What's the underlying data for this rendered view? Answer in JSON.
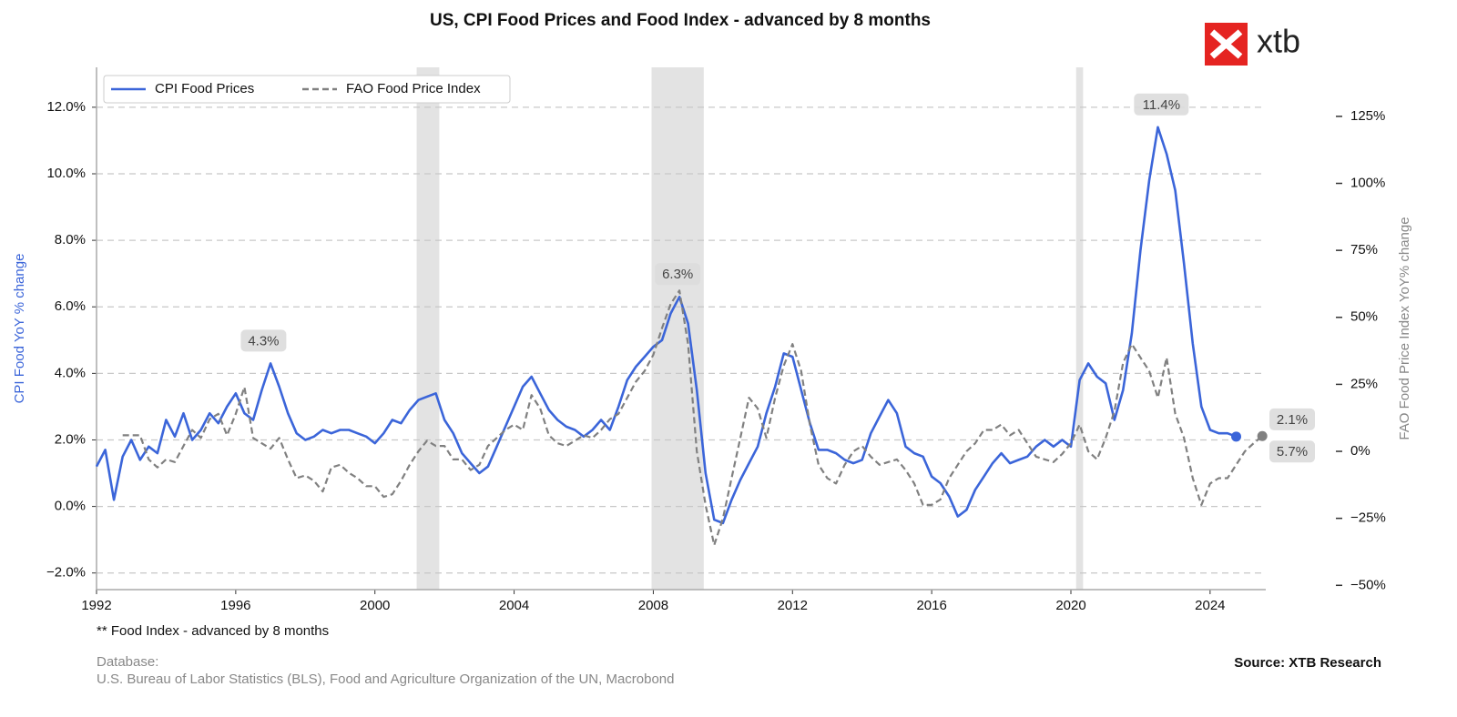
{
  "chart_data": {
    "type": "line",
    "title": "US, CPI Food Prices and Food Index - advanced by 8 months",
    "logo": "xtb",
    "y_label": "CPI Food YoY % change",
    "y2_label": "FAO Food Price Index YoY% change",
    "footnote": "** Food Index - advanced by 8 months",
    "database_title": "Database:",
    "database": "U.S. Bureau of Labor Statistics (BLS), Food and Agriculture Organization of the UN, Macrobond",
    "source": "Source: XTB Research",
    "xlim": [
      1992,
      2025.6
    ],
    "xticks": [
      1992,
      1996,
      2000,
      2004,
      2008,
      2012,
      2016,
      2020,
      2024
    ],
    "ylim": [
      -2.5,
      13.2
    ],
    "yticks": [
      {
        "value": -2,
        "label": "−2.0%"
      },
      {
        "value": 0,
        "label": "0.0%"
      },
      {
        "value": 2,
        "label": "2.0%"
      },
      {
        "value": 4,
        "label": "4.0%"
      },
      {
        "value": 6,
        "label": "6.0%"
      },
      {
        "value": 8,
        "label": "8.0%"
      },
      {
        "value": 10,
        "label": "10.0%"
      },
      {
        "value": 12,
        "label": "12.0%"
      }
    ],
    "y2lim": [
      -51.6,
      143.3
    ],
    "y2ticks": [
      {
        "value": -50,
        "label": "−50%"
      },
      {
        "value": -25,
        "label": "−25%"
      },
      {
        "value": 0,
        "label": "0%"
      },
      {
        "value": 25,
        "label": "25%"
      },
      {
        "value": 50,
        "label": "50%"
      },
      {
        "value": 75,
        "label": "75%"
      },
      {
        "value": 100,
        "label": "100%"
      },
      {
        "value": 125,
        "label": "125%"
      }
    ],
    "grid": true,
    "legend": "upper left",
    "shaded_periods": [
      [
        2001.2,
        2001.85
      ],
      [
        2007.95,
        2009.45
      ],
      [
        2020.15,
        2020.35
      ]
    ],
    "series": [
      {
        "name": "CPI Food Prices",
        "color": "#3b65d9",
        "axis": "y",
        "x": [
          1992,
          1992.25,
          1992.5,
          1992.75,
          1993,
          1993.25,
          1993.5,
          1993.75,
          1994,
          1994.25,
          1994.5,
          1994.75,
          1995,
          1995.25,
          1995.5,
          1995.75,
          1996,
          1996.25,
          1996.5,
          1996.75,
          1997,
          1997.25,
          1997.5,
          1997.75,
          1998,
          1998.25,
          1998.5,
          1998.75,
          1999,
          1999.25,
          1999.5,
          1999.75,
          2000,
          2000.25,
          2000.5,
          2000.75,
          2001,
          2001.25,
          2001.5,
          2001.75,
          2002,
          2002.25,
          2002.5,
          2002.75,
          2003,
          2003.25,
          2003.5,
          2003.75,
          2004,
          2004.25,
          2004.5,
          2004.75,
          2005,
          2005.25,
          2005.5,
          2005.75,
          2006,
          2006.25,
          2006.5,
          2006.75,
          2007,
          2007.25,
          2007.5,
          2007.75,
          2008,
          2008.25,
          2008.5,
          2008.75,
          2009,
          2009.25,
          2009.5,
          2009.75,
          2010,
          2010.25,
          2010.5,
          2010.75,
          2011,
          2011.25,
          2011.5,
          2011.75,
          2012,
          2012.25,
          2012.5,
          2012.75,
          2013,
          2013.25,
          2013.5,
          2013.75,
          2014,
          2014.25,
          2014.5,
          2014.75,
          2015,
          2015.25,
          2015.5,
          2015.75,
          2016,
          2016.25,
          2016.5,
          2016.75,
          2017,
          2017.25,
          2017.5,
          2017.75,
          2018,
          2018.25,
          2018.5,
          2018.75,
          2019,
          2019.25,
          2019.5,
          2019.75,
          2020,
          2020.25,
          2020.5,
          2020.75,
          2021,
          2021.25,
          2021.5,
          2021.75,
          2022,
          2022.25,
          2022.5,
          2022.75,
          2023,
          2023.25,
          2023.5,
          2023.75,
          2024,
          2024.25,
          2024.5,
          2024.75
        ],
        "values": [
          1.2,
          1.7,
          0.2,
          1.5,
          2.0,
          1.4,
          1.8,
          1.6,
          2.6,
          2.1,
          2.8,
          2.0,
          2.3,
          2.8,
          2.5,
          3.0,
          3.4,
          2.8,
          2.6,
          3.5,
          4.3,
          3.6,
          2.8,
          2.2,
          2.0,
          2.1,
          2.3,
          2.2,
          2.3,
          2.3,
          2.2,
          2.1,
          1.9,
          2.2,
          2.6,
          2.5,
          2.9,
          3.2,
          3.3,
          3.4,
          2.6,
          2.2,
          1.6,
          1.3,
          1.0,
          1.2,
          1.8,
          2.4,
          3.0,
          3.6,
          3.9,
          3.4,
          2.9,
          2.6,
          2.4,
          2.3,
          2.1,
          2.3,
          2.6,
          2.3,
          3.0,
          3.8,
          4.2,
          4.5,
          4.8,
          5.0,
          5.8,
          6.3,
          5.5,
          3.5,
          1.0,
          -0.4,
          -0.5,
          0.2,
          0.8,
          1.3,
          1.8,
          2.8,
          3.6,
          4.6,
          4.5,
          3.5,
          2.5,
          1.7,
          1.7,
          1.6,
          1.4,
          1.3,
          1.4,
          2.2,
          2.7,
          3.2,
          2.8,
          1.8,
          1.6,
          1.5,
          0.9,
          0.7,
          0.3,
          -0.3,
          -0.1,
          0.5,
          0.9,
          1.3,
          1.6,
          1.3,
          1.4,
          1.5,
          1.8,
          2.0,
          1.8,
          2.0,
          1.8,
          3.8,
          4.3,
          3.9,
          3.7,
          2.6,
          3.5,
          5.2,
          7.7,
          9.8,
          11.4,
          10.6,
          9.5,
          7.3,
          4.9,
          3.0,
          2.3,
          2.2,
          2.2,
          2.1
        ]
      },
      {
        "name": "FAO Food Price Index",
        "color": "#808080",
        "axis": "y2",
        "x": [
          1992.75,
          1993,
          1993.25,
          1993.5,
          1993.75,
          1994,
          1994.25,
          1994.5,
          1994.75,
          1995,
          1995.25,
          1995.5,
          1995.75,
          1996,
          1996.25,
          1996.5,
          1996.75,
          1997,
          1997.25,
          1997.5,
          1997.75,
          1998,
          1998.25,
          1998.5,
          1998.75,
          1999,
          1999.25,
          1999.5,
          1999.75,
          2000,
          2000.25,
          2000.5,
          2000.75,
          2001,
          2001.25,
          2001.5,
          2001.75,
          2002,
          2002.25,
          2002.5,
          2002.75,
          2003,
          2003.25,
          2003.5,
          2003.75,
          2004,
          2004.25,
          2004.5,
          2004.75,
          2005,
          2005.25,
          2005.5,
          2005.75,
          2006,
          2006.25,
          2006.5,
          2006.75,
          2007,
          2007.25,
          2007.5,
          2007.75,
          2008,
          2008.25,
          2008.5,
          2008.75,
          2009,
          2009.25,
          2009.5,
          2009.75,
          2010,
          2010.25,
          2010.5,
          2010.75,
          2011,
          2011.25,
          2011.5,
          2011.75,
          2012,
          2012.25,
          2012.5,
          2012.75,
          2013,
          2013.25,
          2013.5,
          2013.75,
          2014,
          2014.25,
          2014.5,
          2014.75,
          2015,
          2015.25,
          2015.5,
          2015.75,
          2016,
          2016.25,
          2016.5,
          2016.75,
          2017,
          2017.25,
          2017.5,
          2017.75,
          2018,
          2018.25,
          2018.5,
          2018.75,
          2019,
          2019.25,
          2019.5,
          2019.75,
          2020,
          2020.25,
          2020.5,
          2020.75,
          2021,
          2021.25,
          2021.5,
          2021.75,
          2022,
          2022.25,
          2022.5,
          2022.75,
          2023,
          2023.25,
          2023.5,
          2023.75,
          2024,
          2024.25,
          2024.5,
          2024.75,
          2025,
          2025.25,
          2025.5
        ],
        "values": [
          6,
          6,
          6,
          -3,
          -6,
          -3,
          -4,
          2,
          8,
          5,
          12,
          14,
          6,
          14,
          24,
          5,
          3,
          1,
          5,
          -3,
          -10,
          -9,
          -11,
          -15,
          -6,
          -5,
          -8,
          -10,
          -13,
          -13,
          -17,
          -16,
          -11,
          -5,
          0,
          4,
          2,
          2,
          -3,
          -3,
          -7,
          -5,
          2,
          5,
          8,
          10,
          8,
          21,
          16,
          6,
          3,
          2,
          4,
          6,
          5,
          8,
          12,
          14,
          20,
          26,
          30,
          36,
          46,
          55,
          60,
          40,
          0,
          -20,
          -35,
          -25,
          -10,
          5,
          20,
          16,
          5,
          20,
          32,
          40,
          30,
          10,
          -5,
          -10,
          -12,
          -5,
          0,
          2,
          -2,
          -5,
          -4,
          -3,
          -7,
          -12,
          -20,
          -20,
          -18,
          -10,
          -5,
          0,
          3,
          8,
          8,
          10,
          6,
          8,
          3,
          -2,
          -3,
          -4,
          -1,
          3,
          10,
          0,
          -3,
          5,
          15,
          33,
          40,
          35,
          30,
          20,
          35,
          14,
          5,
          -10,
          -20,
          -12,
          -10,
          -10,
          -5,
          0,
          3,
          5.7
        ]
      }
    ],
    "annotations": [
      {
        "text": "4.3%",
        "x": 1996.8,
        "y": 4.3
      },
      {
        "text": "6.3%",
        "x": 2008.7,
        "y": 6.3
      },
      {
        "text": "11.4%",
        "x": 2022.6,
        "y": 11.4
      }
    ],
    "end_labels": [
      {
        "text": "2.1%",
        "x": 2024.75,
        "y": 2.1,
        "axis": "y"
      },
      {
        "text": "5.7%",
        "x": 2025.5,
        "y": 5.7,
        "axis": "y2"
      }
    ]
  }
}
